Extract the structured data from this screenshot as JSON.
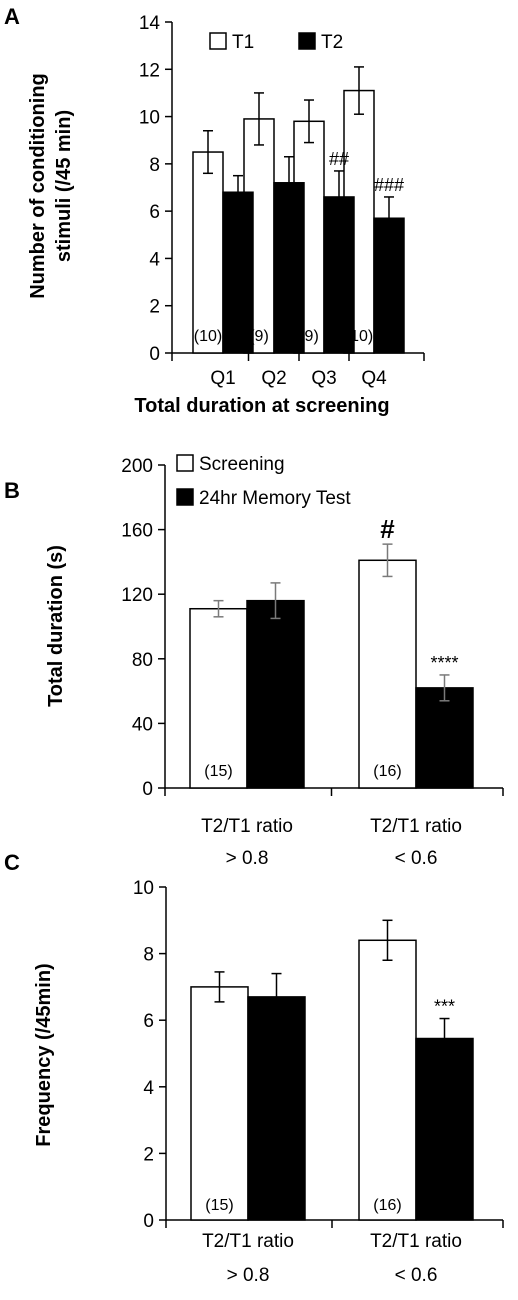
{
  "chart_data": [
    {
      "panel": "A",
      "type": "bar",
      "xlabel": "Total duration at screening",
      "ylabel": "Number of conditioning stimuli (/45 min)",
      "ylim": [
        0,
        14
      ],
      "yticks": [
        0,
        2,
        4,
        6,
        8,
        10,
        12,
        14
      ],
      "categories": [
        "Q1",
        "Q2",
        "Q3",
        "Q4"
      ],
      "legend_placement": "top",
      "series": [
        {
          "name": "T1",
          "fill": "#ffffff",
          "values": [
            8.5,
            9.9,
            9.8,
            11.1
          ],
          "errors": [
            0.9,
            1.1,
            0.9,
            1.0
          ]
        },
        {
          "name": "T2",
          "fill": "#000000",
          "values": [
            6.8,
            7.2,
            6.6,
            5.7
          ],
          "errors": [
            0.7,
            1.1,
            1.1,
            0.9
          ]
        }
      ],
      "annotations": [
        "",
        "",
        "##",
        "###"
      ],
      "n_labels": [
        "(10)",
        "(9)",
        "(9)",
        "(10)"
      ]
    },
    {
      "panel": "B",
      "type": "bar",
      "xlabel": "",
      "ylabel": "Total duration (s)",
      "ylim": [
        0,
        200
      ],
      "yticks": [
        0,
        40,
        80,
        120,
        160,
        200
      ],
      "categories": [
        [
          "T2/T1 ratio",
          "> 0.8"
        ],
        [
          "T2/T1 ratio",
          "< 0.6"
        ]
      ],
      "legend_placement": "top-left",
      "series": [
        {
          "name": "Screening",
          "fill": "#ffffff",
          "values": [
            111,
            141
          ],
          "errors": [
            5,
            10
          ],
          "annotations": [
            "",
            "#"
          ]
        },
        {
          "name": "24hr Memory Test",
          "fill": "#000000",
          "values": [
            116,
            62
          ],
          "errors": [
            11,
            8
          ],
          "annotations": [
            "",
            "****"
          ]
        }
      ],
      "n_labels": [
        "(15)",
        "(16)"
      ]
    },
    {
      "panel": "C",
      "type": "bar",
      "xlabel": "",
      "ylabel": "Frequency (/45min)",
      "ylim": [
        0,
        10
      ],
      "yticks": [
        0,
        2,
        4,
        6,
        8,
        10
      ],
      "categories": [
        [
          "T2/T1 ratio",
          "> 0.8"
        ],
        [
          "T2/T1 ratio",
          "< 0.6"
        ]
      ],
      "series": [
        {
          "values": [
            7.0,
            8.4
          ],
          "errors": [
            0.45,
            0.6
          ],
          "fill": "#ffffff",
          "annotations": [
            "",
            ""
          ]
        },
        {
          "values": [
            6.7,
            5.45
          ],
          "errors": [
            0.7,
            0.6
          ],
          "fill": "#000000",
          "annotations": [
            "",
            "***"
          ]
        }
      ],
      "n_labels": [
        "(15)",
        "(16)"
      ]
    }
  ]
}
